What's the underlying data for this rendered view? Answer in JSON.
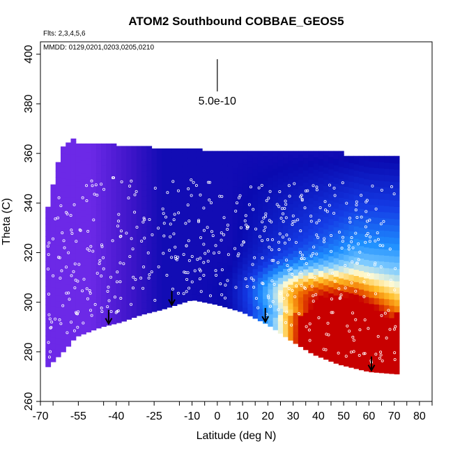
{
  "chart_data": {
    "type": "heatmap",
    "title": "ATOM2 Southbound COBBAE_GEOS5",
    "subtitle_flights": "Flts: 2,3,4,5,6",
    "subtitle_dates": "MMDD: 0129,0201,0203,0205,0210",
    "xlabel": "Latitude (deg N)",
    "ylabel": "Theta (C)",
    "xlim": [
      -70,
      85
    ],
    "ylim": [
      260,
      405
    ],
    "x_ticks": [
      -70,
      -55,
      -40,
      -25,
      -10,
      0,
      10,
      20,
      30,
      40,
      50,
      60,
      70,
      80
    ],
    "x_tick_labels": [
      "-70",
      "-55",
      "-40",
      "-25",
      "-10",
      "0",
      "10",
      "20",
      "30",
      "40",
      "50",
      "60",
      "70",
      "80"
    ],
    "y_ticks": [
      260,
      280,
      300,
      320,
      340,
      360,
      380,
      400
    ],
    "y_tick_labels": [
      "260",
      "280",
      "300",
      "320",
      "340",
      "360",
      "380",
      "400"
    ],
    "scale_bar": {
      "label": "5.0e-10",
      "x": 0,
      "y_range": [
        385,
        398
      ]
    },
    "arrows_at_latitude": [
      -43,
      -18,
      19,
      61
    ],
    "colors": {
      "low": "#7a2ff0",
      "mid_low": "#0a0ab0",
      "mid": "#1e90ff",
      "mid_high": "#fff8c8",
      "high": "#f07800",
      "max": "#c80000"
    },
    "grid": false,
    "legend": "none"
  }
}
